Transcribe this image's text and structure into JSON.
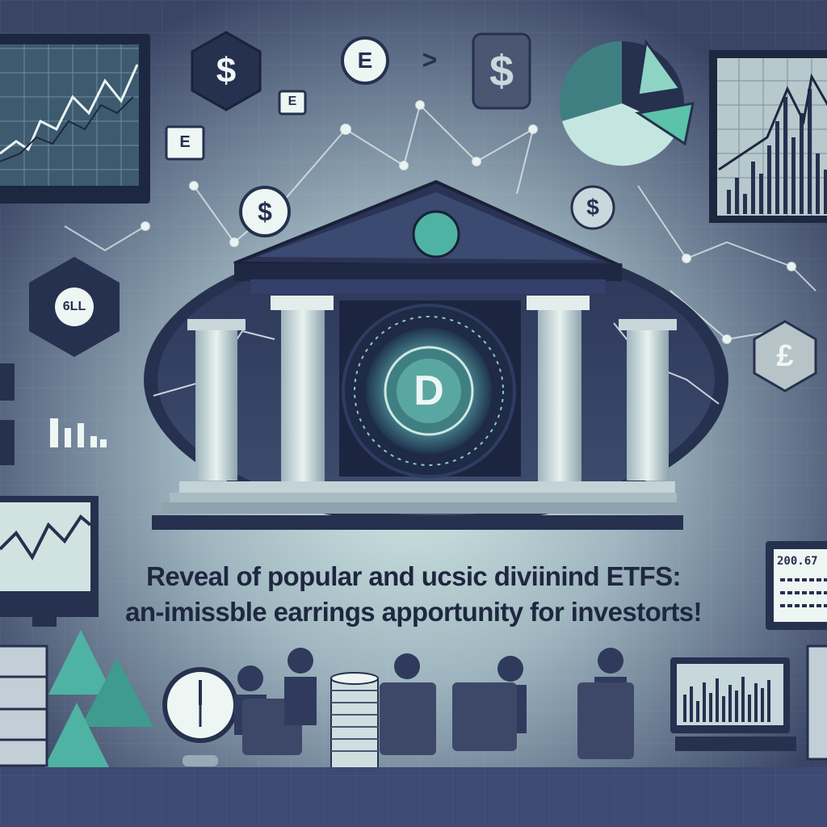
{
  "headline": {
    "line1": "Reveal of popular and ucsic diviinind ETFS:",
    "line2": "an-imissble earrings apportunity for investorts!"
  },
  "icons": {
    "dollar_hex_top": "$",
    "e_circle_top": "E",
    "chevron": ">",
    "dollar_square_top": "$",
    "dollar_circle_mid": "$",
    "dollar_circle_right": "$",
    "pound_hex_right": "£",
    "left_hex_code": "6LL",
    "vault_letter": "D",
    "small_e_tile_1": "E",
    "small_e_tile_2": "E",
    "monitor_digits": "200.67"
  },
  "colors": {
    "background_dark": "#1f2640",
    "background_light": "#cfe7e2",
    "accent_teal": "#4fb3a3",
    "navy": "#26304f"
  }
}
